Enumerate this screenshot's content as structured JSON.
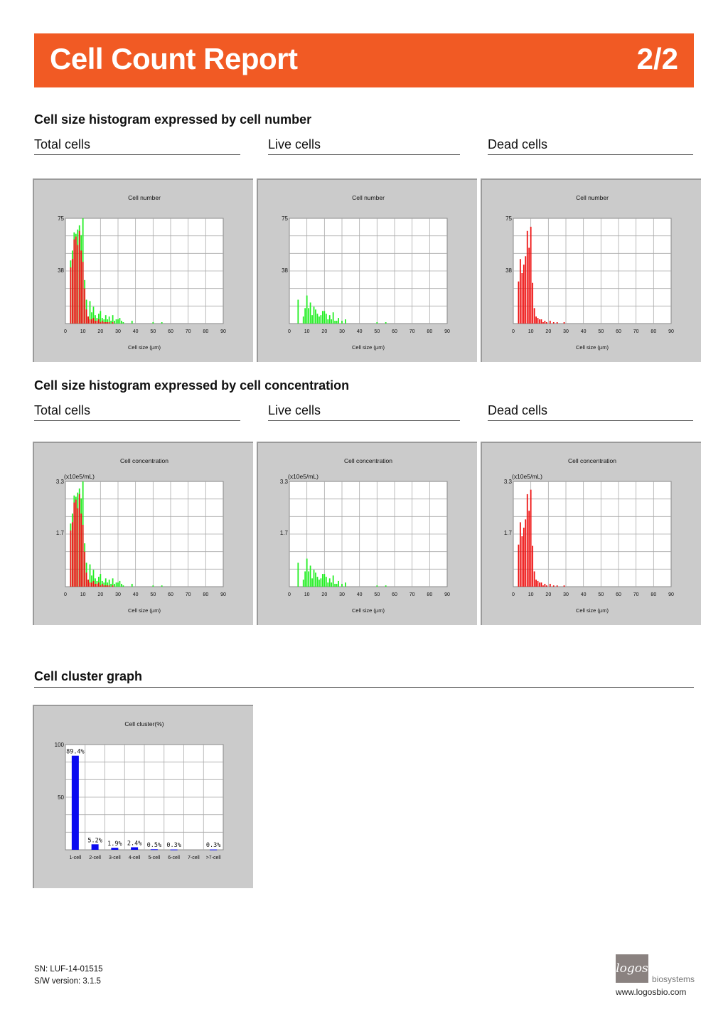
{
  "header": {
    "title": "Cell Count Report",
    "page": "2/2"
  },
  "sections": {
    "number": "Cell size histogram expressed by cell number",
    "concentration": "Cell size histogram expressed by cell concentration",
    "cluster": "Cell cluster graph"
  },
  "subtitles": {
    "total": "Total cells",
    "live": "Live cells",
    "dead": "Dead cells"
  },
  "footer": {
    "sn": "SN: LUF-14-01515",
    "sw": "S/W version: 3.1.5"
  },
  "logo": {
    "mark": "logos",
    "name": "biosystems",
    "url": "www.logosbio.com"
  },
  "colors": {
    "live": "#22ee22",
    "dead": "#ee1111",
    "cluster": "#0a0af0",
    "accent": "#f15a24"
  },
  "chart_data": [
    {
      "id": "num-total",
      "type": "bar",
      "title": "Cell number",
      "xlabel": "Cell size (µm)",
      "xlim": [
        0,
        90
      ],
      "xticks": [
        0,
        10,
        20,
        30,
        40,
        50,
        60,
        70,
        80,
        90
      ],
      "ylim": [
        0,
        75
      ],
      "yticks": [
        38,
        75
      ],
      "unit": "",
      "series": [
        {
          "color": "dead",
          "x": [
            3,
            4,
            5,
            6,
            7,
            8,
            9,
            10,
            11,
            12,
            13,
            14,
            15,
            16,
            17,
            18,
            19,
            20,
            21,
            22,
            23,
            24,
            25,
            26,
            27,
            28,
            29,
            30
          ],
          "values": [
            40,
            46,
            60,
            62,
            56,
            66,
            52,
            44,
            25,
            10,
            5,
            3,
            3,
            4,
            2,
            2,
            3,
            1,
            2,
            1,
            1,
            1,
            1,
            0,
            1,
            0,
            0,
            0
          ]
        },
        {
          "color": "live",
          "x": [
            3,
            4,
            5,
            6,
            7,
            8,
            9,
            10,
            11,
            12,
            13,
            14,
            15,
            16,
            17,
            18,
            19,
            20,
            21,
            22,
            23,
            24,
            25,
            26,
            27,
            28,
            29,
            30,
            31,
            32,
            33,
            38,
            50,
            55
          ],
          "values": [
            45,
            52,
            65,
            64,
            67,
            70,
            63,
            75,
            31,
            17,
            5,
            16,
            8,
            12,
            6,
            4,
            7,
            9,
            4,
            3,
            6,
            3,
            5,
            2,
            6,
            2,
            3,
            3,
            4,
            2,
            1,
            2,
            1,
            1
          ]
        }
      ]
    },
    {
      "id": "num-live",
      "type": "bar",
      "title": "Cell number",
      "xlabel": "Cell size (µm)",
      "xlim": [
        0,
        90
      ],
      "xticks": [
        0,
        10,
        20,
        30,
        40,
        50,
        60,
        70,
        80,
        90
      ],
      "ylim": [
        0,
        75
      ],
      "yticks": [
        38,
        75
      ],
      "unit": "",
      "series": [
        {
          "color": "live",
          "x": [
            5,
            8,
            9,
            10,
            11,
            12,
            13,
            14,
            15,
            16,
            17,
            18,
            19,
            20,
            21,
            22,
            23,
            24,
            25,
            26,
            27,
            28,
            30,
            32,
            50,
            55
          ],
          "values": [
            17,
            5,
            11,
            20,
            11,
            15,
            6,
            12,
            10,
            7,
            5,
            6,
            9,
            9,
            7,
            3,
            6,
            3,
            8,
            2,
            2,
            4,
            2,
            3,
            1,
            1
          ]
        }
      ]
    },
    {
      "id": "num-dead",
      "type": "bar",
      "title": "Cell number",
      "xlabel": "Cell size (µm)",
      "xlim": [
        0,
        90
      ],
      "xticks": [
        0,
        10,
        20,
        30,
        40,
        50,
        60,
        70,
        80,
        90
      ],
      "ylim": [
        0,
        75
      ],
      "yticks": [
        38,
        75
      ],
      "unit": "",
      "series": [
        {
          "color": "dead",
          "x": [
            3,
            4,
            5,
            6,
            7,
            8,
            9,
            10,
            11,
            12,
            13,
            14,
            15,
            16,
            17,
            18,
            19,
            21,
            23,
            25,
            27,
            29
          ],
          "values": [
            30,
            46,
            36,
            42,
            48,
            66,
            54,
            69,
            29,
            11,
            5,
            4,
            3,
            3,
            1,
            2,
            1,
            2,
            1,
            1,
            0,
            1
          ]
        }
      ]
    },
    {
      "id": "conc-total",
      "type": "bar",
      "title": "Cell concentration",
      "xlabel": "Cell size (µm)",
      "xlim": [
        0,
        90
      ],
      "xticks": [
        0,
        10,
        20,
        30,
        40,
        50,
        60,
        70,
        80,
        90
      ],
      "ylim": [
        0,
        3.3
      ],
      "yticks": [
        1.7,
        3.3
      ],
      "unit": "(x10e5/mL)",
      "series": [
        {
          "color": "dead",
          "x": [
            3,
            4,
            5,
            6,
            7,
            8,
            9,
            10,
            11,
            12,
            13,
            14,
            15,
            16,
            17,
            18,
            19,
            20,
            21,
            22,
            23,
            24,
            25,
            26,
            27,
            28,
            29,
            30
          ],
          "values": [
            1.76,
            2.02,
            2.64,
            2.73,
            2.46,
            2.9,
            2.29,
            1.94,
            1.1,
            0.44,
            0.22,
            0.13,
            0.13,
            0.18,
            0.09,
            0.09,
            0.13,
            0.04,
            0.09,
            0.04,
            0.04,
            0.04,
            0.04,
            0,
            0.04,
            0,
            0,
            0
          ]
        },
        {
          "color": "live",
          "x": [
            3,
            4,
            5,
            6,
            7,
            8,
            9,
            10,
            11,
            12,
            13,
            14,
            15,
            16,
            17,
            18,
            19,
            20,
            21,
            22,
            23,
            24,
            25,
            26,
            27,
            28,
            29,
            30,
            31,
            32,
            33,
            38,
            50,
            55
          ],
          "values": [
            1.98,
            2.29,
            2.86,
            2.82,
            2.95,
            3.08,
            2.77,
            3.3,
            1.36,
            0.75,
            0.22,
            0.7,
            0.35,
            0.53,
            0.26,
            0.18,
            0.31,
            0.4,
            0.18,
            0.13,
            0.26,
            0.13,
            0.22,
            0.09,
            0.26,
            0.09,
            0.13,
            0.13,
            0.18,
            0.09,
            0.04,
            0.09,
            0.04,
            0.04
          ]
        }
      ]
    },
    {
      "id": "conc-live",
      "type": "bar",
      "title": "Cell concentration",
      "xlabel": "Cell size (µm)",
      "xlim": [
        0,
        90
      ],
      "xticks": [
        0,
        10,
        20,
        30,
        40,
        50,
        60,
        70,
        80,
        90
      ],
      "ylim": [
        0,
        3.3
      ],
      "yticks": [
        1.7,
        3.3
      ],
      "unit": "(x10e5/mL)",
      "series": [
        {
          "color": "live",
          "x": [
            5,
            8,
            9,
            10,
            11,
            12,
            13,
            14,
            15,
            16,
            17,
            18,
            19,
            20,
            21,
            22,
            23,
            24,
            25,
            26,
            27,
            28,
            30,
            32,
            50,
            55
          ],
          "values": [
            0.75,
            0.22,
            0.48,
            0.88,
            0.48,
            0.66,
            0.26,
            0.53,
            0.44,
            0.31,
            0.22,
            0.26,
            0.4,
            0.4,
            0.31,
            0.13,
            0.26,
            0.13,
            0.35,
            0.09,
            0.09,
            0.18,
            0.09,
            0.13,
            0.04,
            0.04
          ]
        }
      ]
    },
    {
      "id": "conc-dead",
      "type": "bar",
      "title": "Cell concentration",
      "xlabel": "Cell size (µm)",
      "xlim": [
        0,
        90
      ],
      "xticks": [
        0,
        10,
        20,
        30,
        40,
        50,
        60,
        70,
        80,
        90
      ],
      "ylim": [
        0,
        3.3
      ],
      "yticks": [
        1.7,
        3.3
      ],
      "unit": "(x10e5/mL)",
      "series": [
        {
          "color": "dead",
          "x": [
            3,
            4,
            5,
            6,
            7,
            8,
            9,
            10,
            11,
            12,
            13,
            14,
            15,
            16,
            17,
            18,
            19,
            21,
            23,
            25,
            27,
            29
          ],
          "values": [
            1.32,
            2.02,
            1.58,
            1.85,
            2.11,
            2.9,
            2.38,
            3.04,
            1.28,
            0.48,
            0.22,
            0.18,
            0.13,
            0.13,
            0.04,
            0.09,
            0.04,
            0.09,
            0.04,
            0.04,
            0,
            0.04
          ]
        }
      ]
    },
    {
      "id": "cluster",
      "type": "bar",
      "title": "Cell cluster(%)",
      "categories": [
        "1-cell",
        "2-cell",
        "3-cell",
        "4-cell",
        "5-cell",
        "6-cell",
        "7-cell",
        ">7-cell"
      ],
      "values": [
        89.4,
        5.2,
        1.9,
        2.4,
        0.5,
        0.3,
        0,
        0.3
      ],
      "labels": [
        "89.4%",
        "5.2%",
        "1.9%",
        "2.4%",
        "0.5%",
        "0.3%",
        "",
        "0.3%"
      ],
      "ylim": [
        0,
        100
      ],
      "yticks": [
        50,
        100
      ]
    }
  ]
}
